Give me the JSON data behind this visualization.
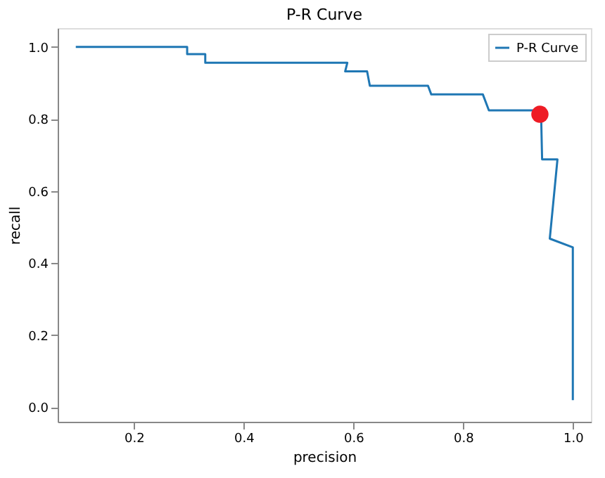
{
  "chart_data": {
    "type": "line",
    "title": "P-R Curve",
    "xlabel": "precision",
    "ylabel": "recall",
    "series": [
      {
        "name": "P-R Curve",
        "color": "#1f77b4",
        "x": [
          0.094,
          0.297,
          0.297,
          0.33,
          0.33,
          0.589,
          0.585,
          0.625,
          0.63,
          0.736,
          0.742,
          0.836,
          0.847,
          0.942,
          0.944,
          0.972,
          0.958,
          1.0,
          1.0
        ],
        "values": [
          1.0,
          1.0,
          0.98,
          0.98,
          0.956,
          0.956,
          0.932,
          0.932,
          0.892,
          0.892,
          0.868,
          0.868,
          0.824,
          0.824,
          0.688,
          0.688,
          0.468,
          0.444,
          0.02
        ]
      },
      {
        "type": "scatter",
        "color": "#ee1c25",
        "x": [
          0.94
        ],
        "values": [
          0.813
        ],
        "marker": "circle"
      }
    ],
    "xlim": [
      0.061,
      1.033
    ],
    "ylim": [
      -0.04,
      1.052
    ],
    "xticks": [
      0.2,
      0.4,
      0.6,
      0.8,
      {
        "value": 1,
        "label": "1.0"
      }
    ],
    "yticks": [
      {
        "value": 0,
        "label": "0.0"
      },
      0.2,
      0.4,
      0.6,
      0.8,
      {
        "value": 1,
        "label": "1.0"
      }
    ],
    "grid": false,
    "legend": "top right"
  }
}
